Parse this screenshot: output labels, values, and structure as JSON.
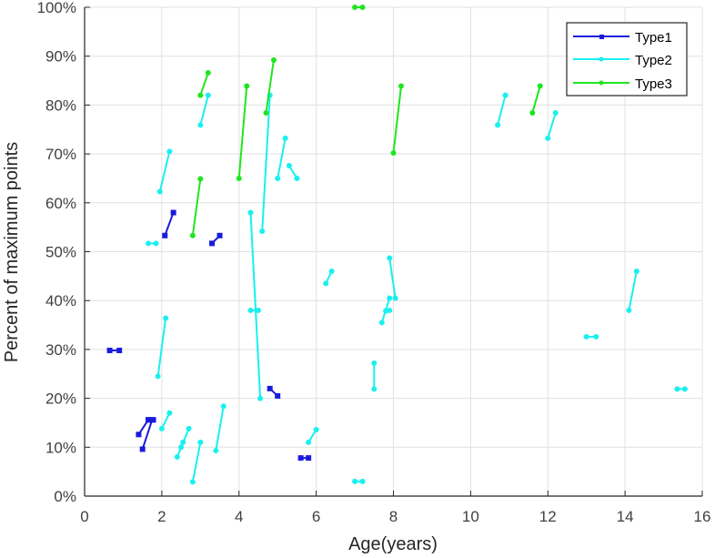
{
  "chart_data": {
    "type": "line",
    "title": "",
    "xlabel": "Age(years)",
    "ylabel": "Percent of maximum points",
    "xlim": [
      0,
      16
    ],
    "ylim": [
      0,
      100
    ],
    "xticks": [
      0,
      2,
      4,
      6,
      8,
      10,
      12,
      14,
      16
    ],
    "yticks": [
      0,
      10,
      20,
      30,
      40,
      50,
      60,
      70,
      80,
      90,
      100
    ],
    "ytick_labels": [
      "0%",
      "10%",
      "20%",
      "30%",
      "40%",
      "50%",
      "60%",
      "70%",
      "80%",
      "90%",
      "100%"
    ],
    "grid": true,
    "legend_position": "top-right",
    "series": [
      {
        "name": "Type1",
        "color": "#1a1adc",
        "segments": [
          [
            [
              0.65,
              29.8
            ],
            [
              0.9,
              29.8
            ]
          ],
          [
            [
              1.4,
              12.6
            ],
            [
              1.65,
              15.6
            ]
          ],
          [
            [
              1.5,
              9.6
            ],
            [
              1.75,
              15.6
            ]
          ],
          [
            [
              1.65,
              15.6
            ],
            [
              1.78,
              15.6
            ]
          ],
          [
            [
              2.08,
              53.3
            ],
            [
              2.3,
              58.0
            ]
          ],
          [
            [
              3.3,
              51.7
            ],
            [
              3.5,
              53.3
            ]
          ],
          [
            [
              4.8,
              22.0
            ],
            [
              5.0,
              20.5
            ]
          ],
          [
            [
              5.6,
              7.8
            ],
            [
              5.8,
              7.8
            ]
          ]
        ]
      },
      {
        "name": "Type2",
        "color": "#19f0f0",
        "segments": [
          [
            [
              1.65,
              51.7
            ],
            [
              1.85,
              51.7
            ]
          ],
          [
            [
              1.95,
              62.3
            ],
            [
              2.2,
              70.5
            ]
          ],
          [
            [
              1.9,
              24.5
            ],
            [
              2.1,
              36.4
            ]
          ],
          [
            [
              2.0,
              13.8
            ],
            [
              2.2,
              17.0
            ]
          ],
          [
            [
              2.4,
              8.0
            ],
            [
              2.7,
              13.8
            ]
          ],
          [
            [
              2.5,
              10.0
            ],
            [
              2.55,
              11.0
            ]
          ],
          [
            [
              2.8,
              2.9
            ],
            [
              3.0,
              11.0
            ]
          ],
          [
            [
              3.0,
              75.9
            ],
            [
              3.2,
              82.0
            ]
          ],
          [
            [
              3.4,
              9.3
            ],
            [
              3.6,
              18.4
            ]
          ],
          [
            [
              4.3,
              38.0
            ],
            [
              4.5,
              38.0
            ]
          ],
          [
            [
              4.3,
              58.0
            ],
            [
              4.55,
              20.0
            ]
          ],
          [
            [
              4.6,
              54.2
            ],
            [
              4.8,
              82.0
            ]
          ],
          [
            [
              5.0,
              65.0
            ],
            [
              5.2,
              73.2
            ]
          ],
          [
            [
              5.3,
              67.6
            ],
            [
              5.5,
              65.0
            ]
          ],
          [
            [
              5.8,
              11.0
            ],
            [
              6.0,
              13.6
            ]
          ],
          [
            [
              6.25,
              43.5
            ],
            [
              6.4,
              46.0
            ]
          ],
          [
            [
              7.0,
              3.0
            ],
            [
              7.2,
              3.0
            ]
          ],
          [
            [
              7.5,
              27.2
            ],
            [
              7.5,
              21.9
            ]
          ],
          [
            [
              7.7,
              35.5
            ],
            [
              7.9,
              40.5
            ]
          ],
          [
            [
              7.8,
              37.9
            ],
            [
              7.9,
              38.0
            ]
          ],
          [
            [
              7.9,
              48.7
            ],
            [
              8.05,
              40.5
            ]
          ],
          [
            [
              10.7,
              75.9
            ],
            [
              10.9,
              82.0
            ]
          ],
          [
            [
              12.0,
              73.2
            ],
            [
              12.2,
              78.4
            ]
          ],
          [
            [
              13.0,
              32.6
            ],
            [
              13.25,
              32.6
            ]
          ],
          [
            [
              14.1,
              38.0
            ],
            [
              14.3,
              46.0
            ]
          ],
          [
            [
              15.35,
              21.9
            ],
            [
              15.55,
              21.9
            ]
          ]
        ]
      },
      {
        "name": "Type3",
        "color": "#1ee61e",
        "segments": [
          [
            [
              2.8,
              53.3
            ],
            [
              3.0,
              64.9
            ]
          ],
          [
            [
              3.0,
              82.0
            ],
            [
              3.2,
              86.6
            ]
          ],
          [
            [
              4.0,
              65.0
            ],
            [
              4.2,
              83.9
            ]
          ],
          [
            [
              4.7,
              78.4
            ],
            [
              4.9,
              89.2
            ]
          ],
          [
            [
              7.0,
              100.0
            ],
            [
              7.2,
              100.0
            ]
          ],
          [
            [
              8.0,
              70.2
            ],
            [
              8.2,
              83.9
            ]
          ],
          [
            [
              11.6,
              78.4
            ],
            [
              11.8,
              83.9
            ]
          ]
        ]
      }
    ]
  },
  "legend": {
    "items": [
      {
        "label": "Type1",
        "color": "#1a1adc",
        "marker": "square"
      },
      {
        "label": "Type2",
        "color": "#19f0f0",
        "marker": "circle"
      },
      {
        "label": "Type3",
        "color": "#1ee61e",
        "marker": "circle"
      }
    ]
  },
  "axes": {
    "xlabel": "Age(years)",
    "ylabel": "Percent of maximum points"
  }
}
